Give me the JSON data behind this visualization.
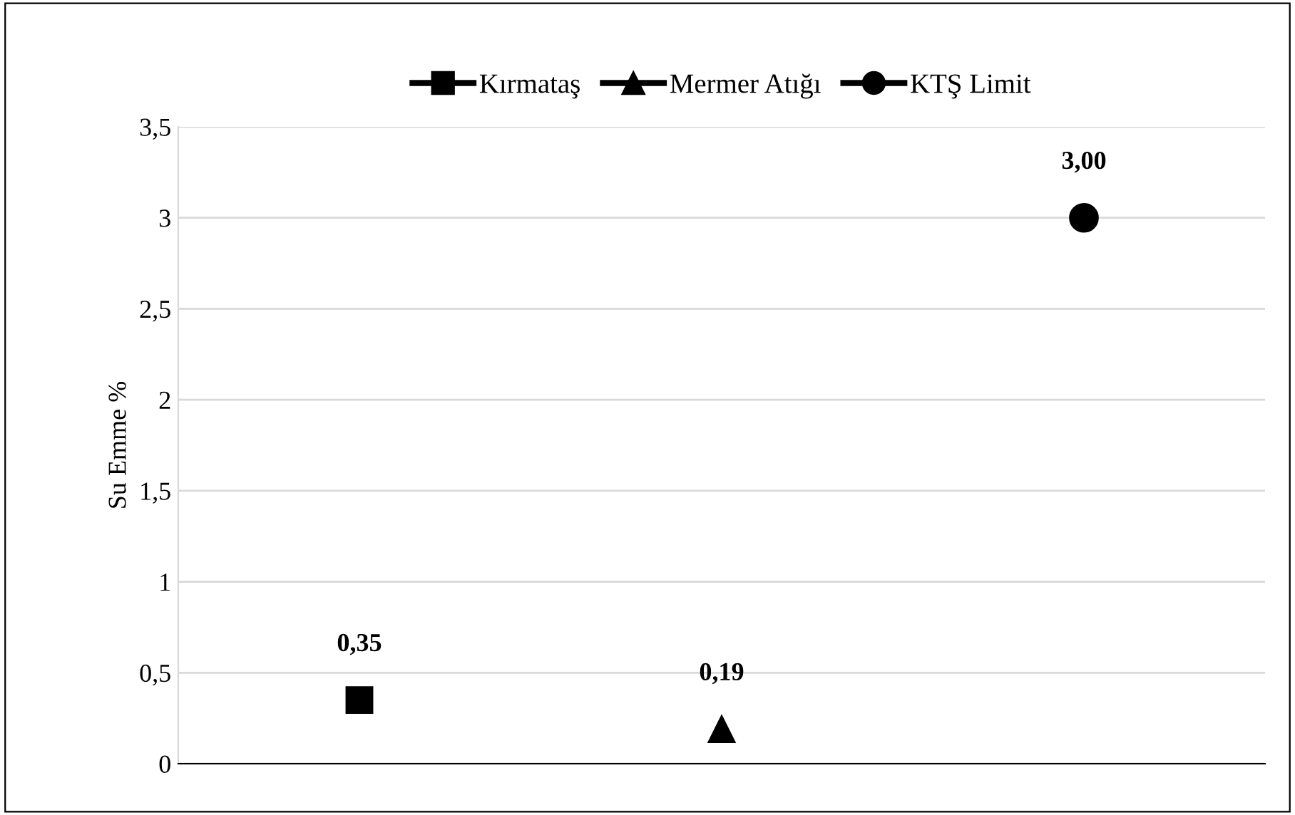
{
  "chart_data": {
    "type": "line",
    "ylabel": "Su Emme %",
    "categories": [
      null,
      null,
      null
    ],
    "series": [
      {
        "name": "Kırmataş",
        "color": "#000000",
        "marker": "square",
        "values": [
          0.35,
          null,
          null
        ],
        "value_labels": [
          "0,35",
          null,
          null
        ]
      },
      {
        "name": "Mermer Atığı",
        "color": "#000000",
        "marker": "triangle",
        "values": [
          null,
          0.19,
          null
        ],
        "value_labels": [
          null,
          "0,19",
          null
        ]
      },
      {
        "name": "KTŞ Limit",
        "color": "#000000",
        "marker": "circle",
        "values": [
          null,
          null,
          3.0
        ],
        "value_labels": [
          null,
          null,
          "3,00"
        ]
      }
    ],
    "ylim": [
      0,
      3.5
    ],
    "yticks": [
      0,
      {
        "value": 0.5,
        "label": "0,5"
      },
      1,
      {
        "value": 1.5,
        "label": "1,5"
      },
      2,
      {
        "value": 2.5,
        "label": "2,5"
      },
      3,
      {
        "value": 3.5,
        "label": "3,5"
      }
    ],
    "grid": "y",
    "legend": "top"
  }
}
